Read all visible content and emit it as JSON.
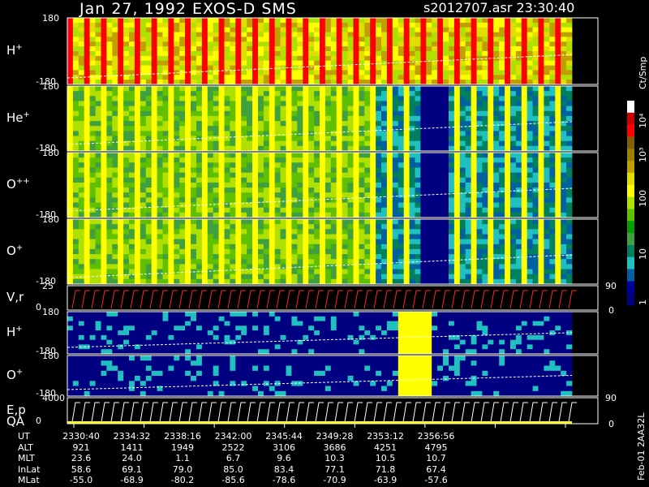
{
  "header": {
    "title": "Jan 27, 1992    EXOS-D SMS",
    "file_time": "s2012707.asr   23:30:40"
  },
  "chart_data": {
    "type": "heatmap",
    "title": "Jan 27, 1992    EXOS-D SMS",
    "panels": [
      {
        "label": "H",
        "sup": "+",
        "ylim": [
          -180,
          180
        ],
        "tick_top": "180",
        "tick_bottom": "-180",
        "kind": "spectrogram"
      },
      {
        "label": "He",
        "sup": "+",
        "ylim": [
          -180,
          180
        ],
        "tick_top": "180",
        "tick_bottom": "-180",
        "kind": "spectrogram"
      },
      {
        "label": "O",
        "sup": "++",
        "ylim": [
          -180,
          180
        ],
        "tick_top": "180",
        "tick_bottom": "-180",
        "kind": "spectrogram"
      },
      {
        "label": "O",
        "sup": "+",
        "ylim": [
          -180,
          180
        ],
        "tick_top": "180",
        "tick_bottom": "-180",
        "kind": "spectrogram"
      },
      {
        "label": "V,r",
        "sup": "",
        "ylim": [
          0,
          25
        ],
        "tick_top": "25",
        "tick_bottom": "0",
        "right_top": "90",
        "right_bottom": "0",
        "kind": "line"
      },
      {
        "label": "H",
        "sup": "+",
        "ylim": [
          -180,
          180
        ],
        "tick_top": "180",
        "tick_bottom": "-180",
        "kind": "spectrogram"
      },
      {
        "label": "O",
        "sup": "+",
        "ylim": [
          -180,
          180
        ],
        "tick_top": "180",
        "tick_bottom": "-180",
        "kind": "spectrogram"
      },
      {
        "label": "E,p",
        "label2": "QA",
        "sup": "",
        "ylim": [
          0,
          4000
        ],
        "tick_top": "4000",
        "tick_bottom": "0",
        "right_top": "90",
        "right_bottom": "0",
        "kind": "line"
      }
    ],
    "colorbar": {
      "unit": "Ct/Smp",
      "ticks": [
        "10⁴",
        "10³",
        "100",
        "10",
        "1"
      ],
      "colors": [
        "#ffffff",
        "#d00000",
        "#ff0000",
        "#806000",
        "#a08000",
        "#c0a000",
        "#e0e000",
        "#ffff00",
        "#b0e000",
        "#60c000",
        "#00a000",
        "#40a040",
        "#008060",
        "#20c0c0",
        "#0060a0",
        "#0000a0",
        "#000080"
      ]
    },
    "ephemeris": {
      "rows": [
        {
          "label": "UT",
          "values": [
            "2330:40",
            "2334:32",
            "2338:16",
            "2342:00",
            "2345:44",
            "2349:28",
            "2353:12",
            "2356:56"
          ]
        },
        {
          "label": "ALT",
          "values": [
            "921",
            "1411",
            "1949",
            "2522",
            "3106",
            "3686",
            "4251",
            "4795"
          ]
        },
        {
          "label": "MLT",
          "values": [
            "23.6",
            "24.0",
            "1.1",
            "6.7",
            "9.6",
            "10.3",
            "10.5",
            "10.7"
          ]
        },
        {
          "label": "InLat",
          "values": [
            "58.6",
            "69.1",
            "79.0",
            "85.0",
            "83.4",
            "77.1",
            "71.8",
            "67.4"
          ]
        },
        {
          "label": "MLat",
          "values": [
            "-55.0",
            "-68.9",
            "-80.2",
            "-85.6",
            "-78.6",
            "-70.9",
            "-63.9",
            "-57.6"
          ]
        }
      ]
    }
  },
  "footer": {
    "side_text": "Feb-01 2AA32L"
  }
}
